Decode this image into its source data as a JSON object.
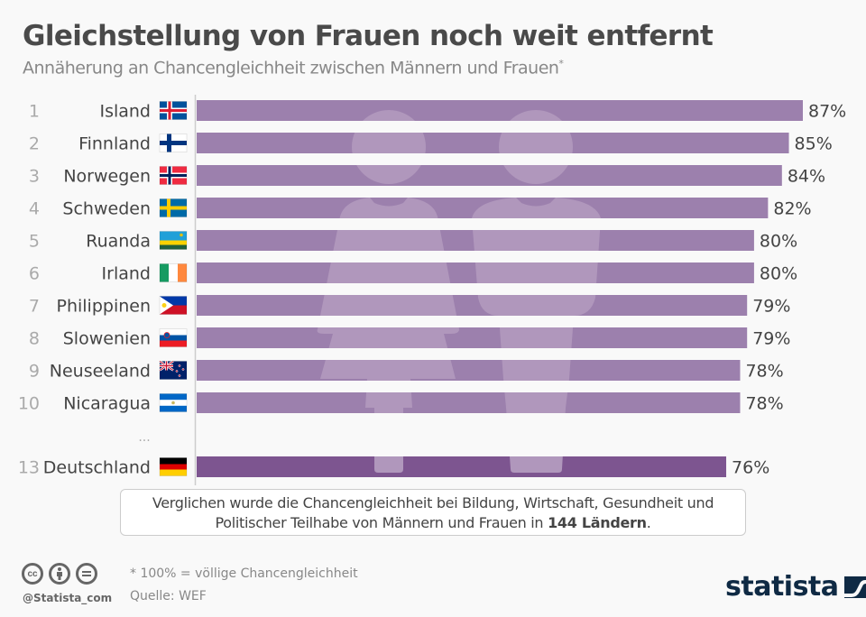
{
  "header": {
    "title": "Gleichstellung von Frauen noch weit entfernt",
    "subtitle": "Annäherung an Chancengleichheit zwischen Männern und Frauen",
    "subtitle_marker": "*"
  },
  "chart_data": {
    "type": "bar",
    "orientation": "horizontal",
    "title": "Gleichstellung von Frauen noch weit entfernt",
    "subtitle": "Annäherung an Chancengleichheit zwischen Männern und Frauen*",
    "xlabel": "",
    "ylabel": "",
    "xlim": [
      0,
      87
    ],
    "grid": false,
    "value_suffix": "%",
    "ellipsis_label": "...",
    "colors": {
      "bar": "#9c80ad",
      "highlight": "#7d5590",
      "silhouette": "#b097bc"
    },
    "categories": [
      "Island",
      "Finnland",
      "Norwegen",
      "Schweden",
      "Ruanda",
      "Irland",
      "Philippinen",
      "Slowenien",
      "Neuseeland",
      "Nicaragua",
      "Deutschland"
    ],
    "ranks": [
      1,
      2,
      3,
      4,
      5,
      6,
      7,
      8,
      9,
      10,
      13
    ],
    "flags": [
      "flag-iceland",
      "flag-finland",
      "flag-norway",
      "flag-sweden",
      "flag-rwanda",
      "flag-ireland",
      "flag-philippines",
      "flag-slovenia",
      "flag-new-zealand",
      "flag-nicaragua",
      "flag-germany"
    ],
    "values": [
      87,
      85,
      84,
      82,
      80,
      80,
      79,
      79,
      78,
      78,
      76
    ],
    "highlighted": [
      "Deutschland"
    ]
  },
  "note": {
    "line1": "Verglichen wurde die Chancengleichheit bei Bildung, Wirtschaft, Gesundheit und",
    "line2_prefix": "Politischer Teilhabe von Männern und Frauen in ",
    "line2_bold": "144 Ländern",
    "line2_suffix": "."
  },
  "footer": {
    "footnote": "* 100% = völlige Chancengleichheit",
    "source": "Quelle: WEF",
    "handle": "@Statista_com",
    "cc_icons": [
      "cc",
      "i",
      "="
    ],
    "logo": "statista"
  }
}
